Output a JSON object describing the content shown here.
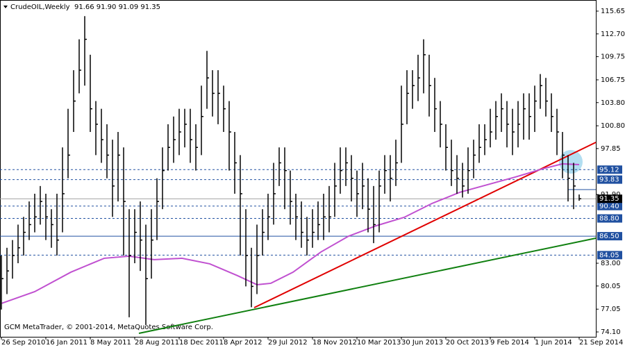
{
  "chart_data": {
    "type": "ohlc",
    "title": "CrudeOIL,Weekly  91.66 91.90 91.09 91.35",
    "footer": "GCM MetaTrader, © 2001-2014, MetaQuotes Software Corp.",
    "bar_color": "#000000",
    "xlim": [
      -0.25,
      107
    ],
    "ylim": [
      73.47,
      117.09
    ],
    "xticks": [
      {
        "value": 0,
        "label": "26 Sep 2010"
      },
      {
        "value": 8,
        "label": "16 Jan 2011"
      },
      {
        "value": 16,
        "label": "8 May 2011"
      },
      {
        "value": 24,
        "label": "28 Aug 2011"
      },
      {
        "value": 32,
        "label": "18 Dec 2011"
      },
      {
        "value": 40,
        "label": "8 Apr 2012"
      },
      {
        "value": 48,
        "label": "29 Jul 2012"
      },
      {
        "value": 56,
        "label": "18 Nov 2012"
      },
      {
        "value": 64,
        "label": "10 Mar 2013"
      },
      {
        "value": 72,
        "label": "30 Jun 2013"
      },
      {
        "value": 80,
        "label": "20 Oct 2013"
      },
      {
        "value": 88,
        "label": "9 Feb 2014"
      },
      {
        "value": 96,
        "label": "1 Jun 2014"
      },
      {
        "value": 104,
        "label": "21 Sep 2014"
      }
    ],
    "yticks": [
      {
        "value": 115.65,
        "label": "115.65"
      },
      {
        "value": 112.7,
        "label": "112.70"
      },
      {
        "value": 109.75,
        "label": "109.75"
      },
      {
        "value": 106.75,
        "label": "106.75"
      },
      {
        "value": 103.8,
        "label": "103.80"
      },
      {
        "value": 100.8,
        "label": "100.80"
      },
      {
        "value": 97.85,
        "label": "97.85"
      },
      {
        "value": 91.9,
        "label": "91.90"
      },
      {
        "value": 83,
        "label": "83.00"
      },
      {
        "value": 80.05,
        "label": "80.05"
      },
      {
        "value": 77.05,
        "label": "77.05"
      },
      {
        "value": 74.1,
        "label": "74.10"
      }
    ],
    "levels": {
      "color": "#2050a0",
      "items": [
        {
          "value": 95.12,
          "label": "95.12"
        },
        {
          "value": 93.83,
          "label": "93.83"
        },
        {
          "value": 90.4,
          "label": "90.40"
        },
        {
          "value": 88.8,
          "label": "88.80"
        },
        {
          "value": 86.5,
          "label": "86.50"
        },
        {
          "value": 84.05,
          "label": "84.05"
        }
      ]
    },
    "last_price": {
      "value": 91.35,
      "label": "91.35"
    },
    "highs": [
      84,
      85,
      86,
      88,
      89,
      91,
      92,
      93,
      92,
      90,
      92,
      98,
      103,
      108,
      112,
      115,
      110,
      104,
      103,
      101,
      99,
      100,
      98,
      90,
      90,
      91,
      88,
      90,
      94,
      98,
      101,
      102,
      103,
      103,
      103,
      101,
      106,
      110.5,
      108,
      108,
      106,
      104,
      100,
      97,
      90,
      85,
      88,
      90,
      92,
      96,
      98,
      98,
      95,
      92,
      91,
      89,
      90,
      91,
      92,
      93,
      96,
      98,
      98,
      97,
      95,
      96,
      94,
      93,
      95,
      97,
      97,
      99,
      106,
      108,
      108,
      110,
      112,
      110,
      107,
      104,
      101,
      99,
      97,
      96,
      98,
      99,
      101,
      101,
      103,
      104,
      105,
      104,
      103,
      104,
      105,
      105,
      106,
      107.5,
      107,
      105,
      103,
      100,
      97,
      96,
      91.9
    ],
    "lows": [
      77,
      79,
      81,
      83,
      84,
      86,
      87,
      88,
      86,
      85,
      84,
      87,
      94,
      100,
      105,
      106,
      100,
      97,
      96,
      94,
      89,
      91,
      84,
      76,
      83,
      82,
      75,
      81,
      86,
      90,
      95,
      96,
      97,
      98,
      96,
      95,
      97,
      103,
      102,
      101,
      100,
      95,
      92,
      84,
      80,
      77.3,
      79,
      84,
      86,
      88,
      93,
      90,
      88,
      86,
      85,
      84,
      85,
      86,
      86,
      87,
      89,
      92,
      93,
      91,
      89,
      90,
      87,
      85.6,
      87,
      92,
      91,
      93,
      96,
      101,
      103,
      104,
      105,
      102,
      100,
      98,
      95,
      93,
      92,
      91.5,
      92,
      94,
      96,
      97,
      98,
      99,
      100,
      98,
      97,
      98,
      99,
      99,
      100,
      103,
      102,
      100,
      97,
      94,
      91,
      90,
      91.09
    ],
    "closes": [
      81,
      82,
      84,
      85,
      87,
      88,
      89,
      91,
      89,
      88,
      86,
      92,
      97,
      104,
      108,
      112,
      103,
      101,
      99,
      97,
      93,
      97,
      91,
      84,
      87,
      86,
      81,
      86,
      91,
      95,
      98,
      99,
      100,
      101,
      99,
      98,
      102,
      107,
      105,
      105,
      103,
      100,
      96,
      92,
      84,
      80,
      84,
      87,
      89,
      92,
      96,
      95,
      91,
      89,
      87,
      86,
      87,
      88,
      89,
      89,
      93,
      95,
      96,
      94,
      92,
      93,
      90,
      88,
      93,
      95,
      94,
      96,
      101,
      105,
      106,
      107,
      110,
      106,
      103,
      101,
      98,
      95,
      94,
      93,
      95,
      97,
      98,
      99,
      100,
      102,
      103,
      101,
      100,
      101,
      103,
      102,
      104,
      106,
      104,
      102,
      100,
      97,
      94,
      93,
      91.35
    ],
    "moving_average": {
      "color": "#c050d0",
      "x": [
        0,
        6,
        12.5,
        18.5,
        23,
        27.5,
        32.5,
        37.5,
        42.5,
        46,
        48.5,
        52.5,
        57.5,
        62.5,
        67.5,
        72.5,
        77.5,
        82.5,
        87.5,
        92.5,
        97.5,
        101,
        104
      ],
      "values": [
        77.79,
        79.32,
        81.84,
        83.64,
        83.91,
        83.46,
        83.64,
        82.92,
        81.39,
        80.22,
        80.4,
        81.84,
        84.45,
        86.51,
        87.86,
        88.94,
        90.74,
        92.18,
        93.17,
        94.16,
        95.24,
        95.87,
        95.78
      ]
    },
    "trendlines": [
      {
        "color": "#e00000",
        "x": [
          45.5,
          107
        ],
        "values": [
          77.25,
          98.65
        ]
      },
      {
        "color": "#108010",
        "x": [
          24.75,
          107
        ],
        "values": [
          73.92,
          86.24
        ]
      }
    ]
  }
}
